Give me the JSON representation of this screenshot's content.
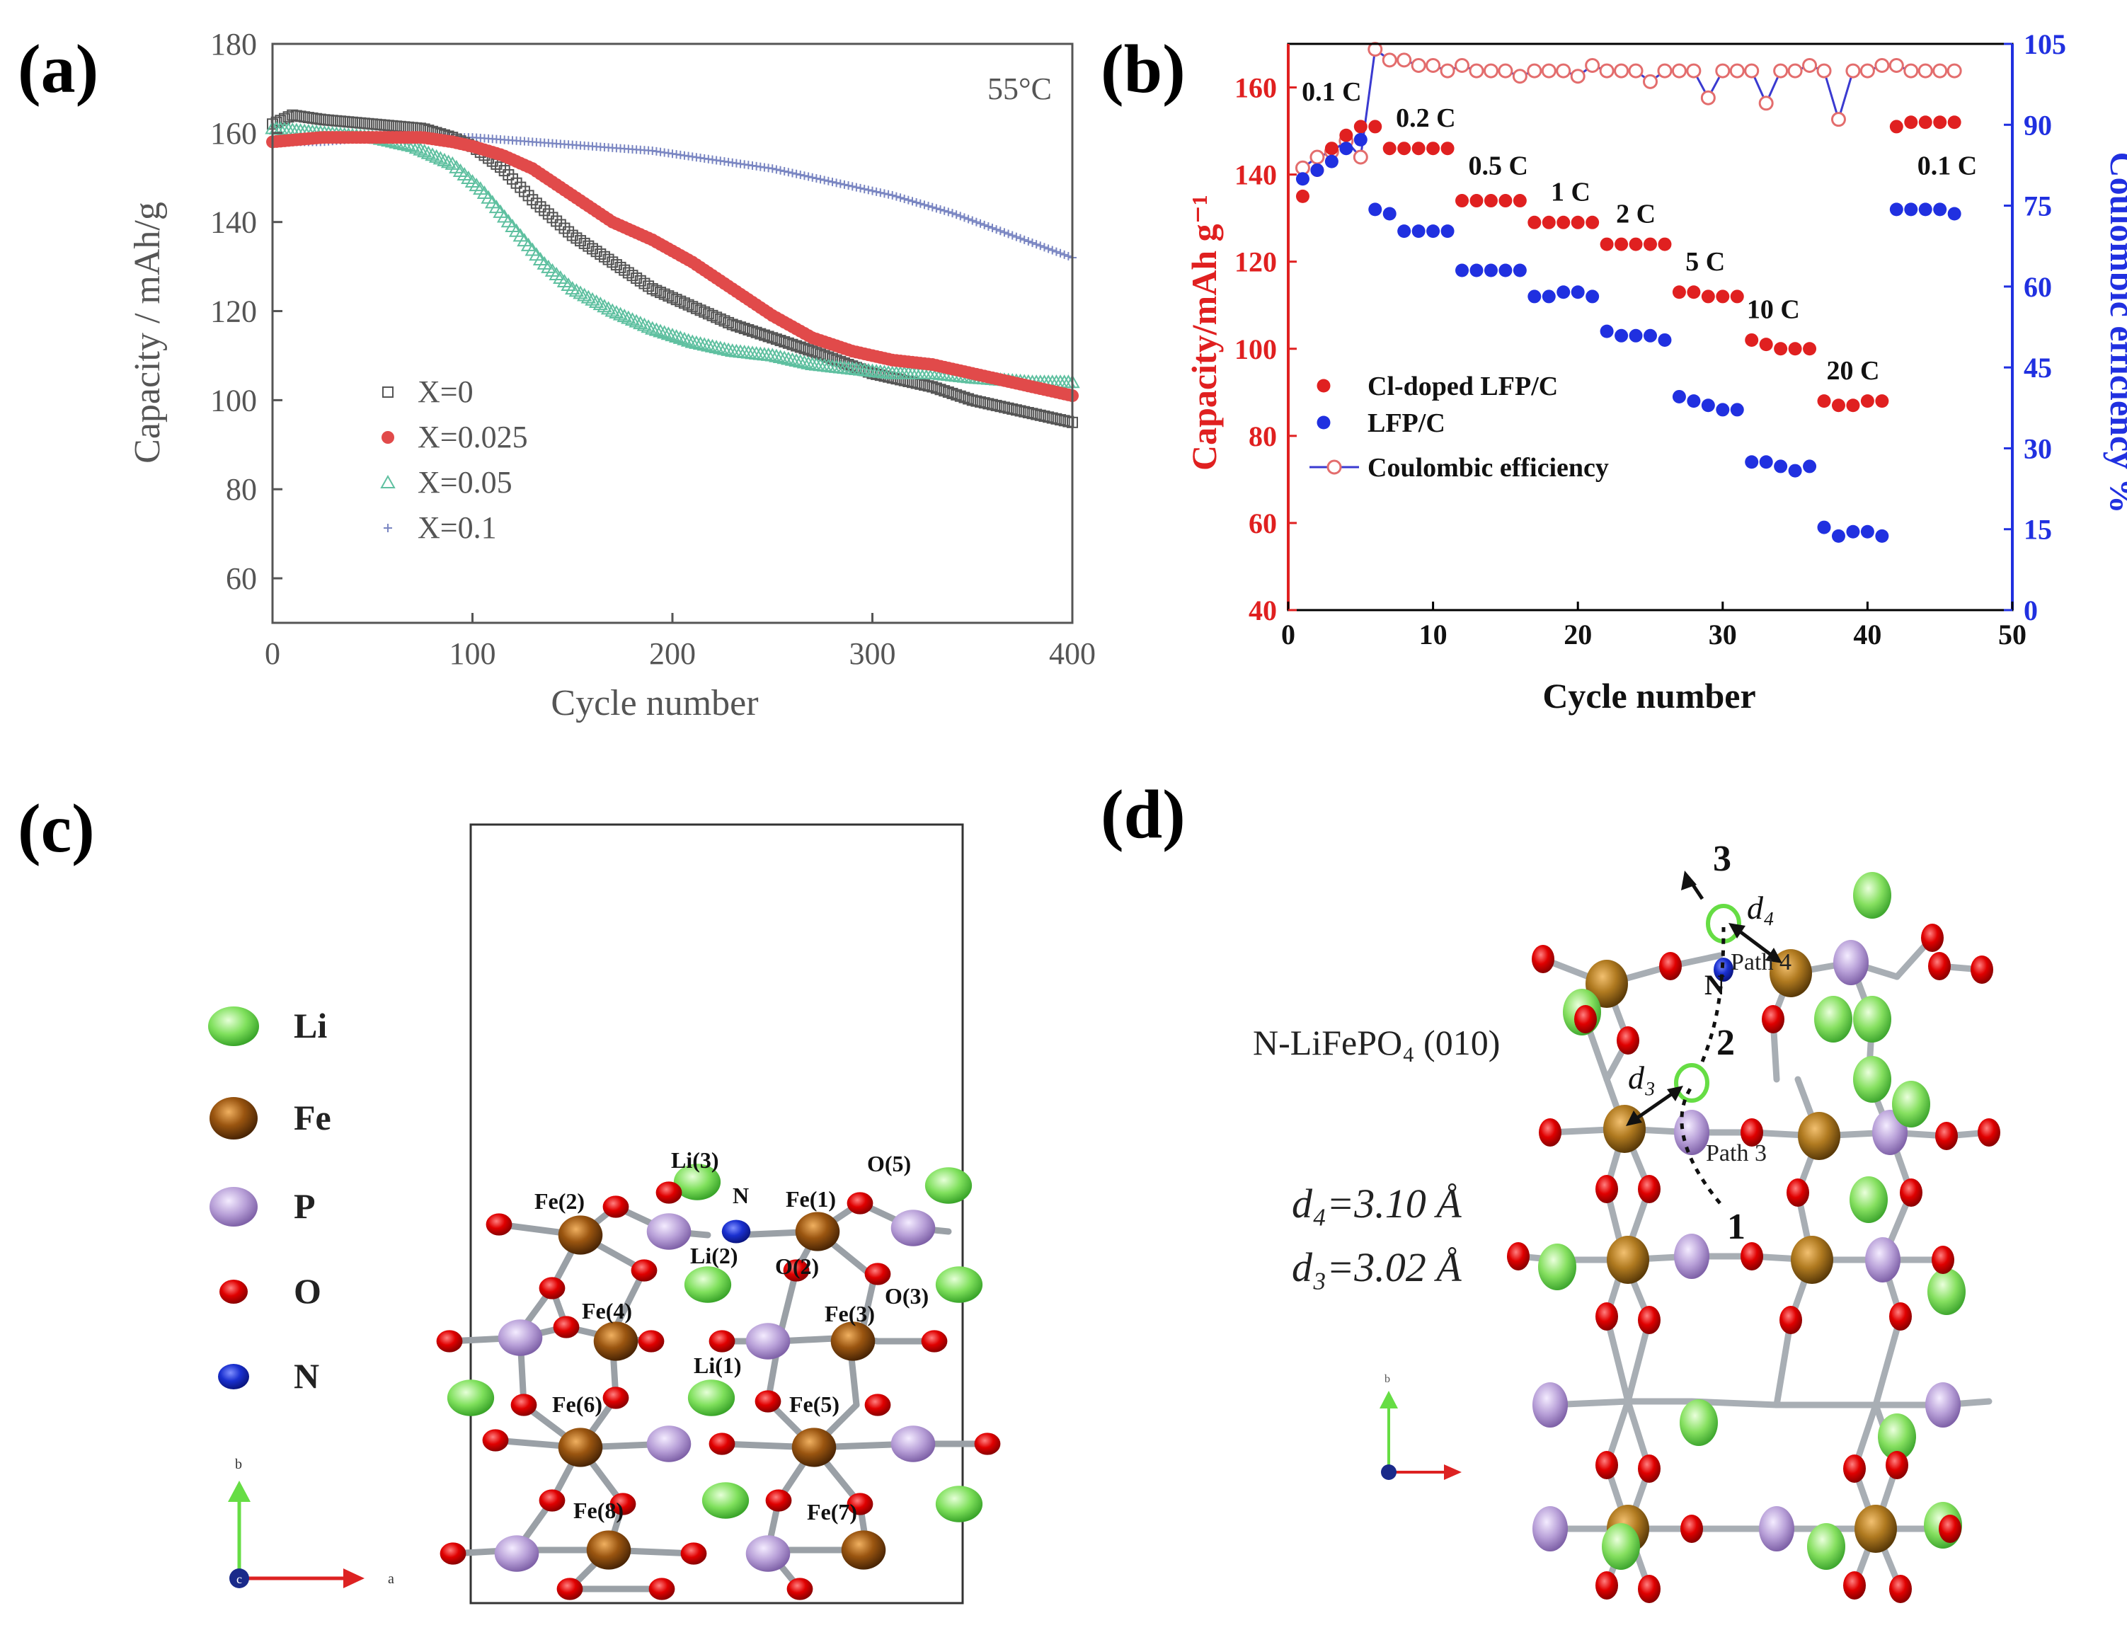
{
  "panels": {
    "a": {
      "label": "(a)"
    },
    "b": {
      "label": "(b)"
    },
    "c": {
      "label": "(c)"
    },
    "d": {
      "label": "(d)"
    }
  },
  "chart_data": [
    {
      "id": "a",
      "type": "scatter",
      "annotation": "55°C",
      "xlabel": "Cycle number",
      "ylabel": "Capacity / mAh/g",
      "xlim": [
        0,
        400
      ],
      "ylim": [
        50,
        180
      ],
      "xticks": [
        0,
        100,
        200,
        300,
        400
      ],
      "yticks": [
        60,
        80,
        100,
        120,
        140,
        160,
        180
      ],
      "legend_position": "lower-left",
      "series": [
        {
          "name": "X=0",
          "marker": "square",
          "color": "#555555",
          "points": [
            [
              0,
              162
            ],
            [
              10,
              164
            ],
            [
              25,
              163
            ],
            [
              50,
              162
            ],
            [
              75,
              161
            ],
            [
              90,
              159
            ],
            [
              100,
              157
            ],
            [
              115,
              152
            ],
            [
              130,
              145
            ],
            [
              150,
              137
            ],
            [
              170,
              131
            ],
            [
              190,
              125
            ],
            [
              210,
              121
            ],
            [
              230,
              117
            ],
            [
              250,
              114
            ],
            [
              270,
              111
            ],
            [
              300,
              106
            ],
            [
              330,
              103
            ],
            [
              350,
              100
            ],
            [
              370,
              98
            ],
            [
              400,
              95
            ]
          ]
        },
        {
          "name": "X=0.025",
          "marker": "circle",
          "color": "#e14a4a",
          "points": [
            [
              0,
              158
            ],
            [
              25,
              159
            ],
            [
              50,
              159
            ],
            [
              75,
              159
            ],
            [
              90,
              158
            ],
            [
              100,
              157
            ],
            [
              115,
              155
            ],
            [
              130,
              152
            ],
            [
              150,
              146
            ],
            [
              170,
              140
            ],
            [
              190,
              136
            ],
            [
              210,
              131
            ],
            [
              230,
              125
            ],
            [
              250,
              119
            ],
            [
              270,
              114
            ],
            [
              290,
              111
            ],
            [
              310,
              109
            ],
            [
              330,
              108
            ],
            [
              350,
              106
            ],
            [
              370,
              104
            ],
            [
              390,
              102
            ],
            [
              400,
              101
            ]
          ]
        },
        {
          "name": "X=0.05",
          "marker": "triangle",
          "color": "#5fc0a0",
          "points": [
            [
              0,
              161
            ],
            [
              25,
              160
            ],
            [
              50,
              159
            ],
            [
              70,
              157
            ],
            [
              90,
              153
            ],
            [
              105,
              147
            ],
            [
              120,
              139
            ],
            [
              135,
              131
            ],
            [
              150,
              125
            ],
            [
              170,
              120
            ],
            [
              190,
              116
            ],
            [
              210,
              113
            ],
            [
              230,
              111
            ],
            [
              250,
              110
            ],
            [
              270,
              108
            ],
            [
              290,
              107
            ],
            [
              310,
              106
            ],
            [
              330,
              106
            ],
            [
              350,
              105
            ],
            [
              380,
              104
            ],
            [
              400,
              104
            ]
          ]
        },
        {
          "name": "X=0.1",
          "marker": "plus",
          "color": "#7a86c2",
          "points": [
            [
              0,
              158
            ],
            [
              25,
              158
            ],
            [
              50,
              159
            ],
            [
              75,
              159
            ],
            [
              100,
              159
            ],
            [
              130,
              158
            ],
            [
              160,
              157
            ],
            [
              190,
              156
            ],
            [
              220,
              154
            ],
            [
              250,
              152
            ],
            [
              280,
              149
            ],
            [
              310,
              146
            ],
            [
              340,
              142
            ],
            [
              370,
              137
            ],
            [
              400,
              132
            ]
          ]
        }
      ]
    },
    {
      "id": "b",
      "type": "scatter",
      "xlabel": "Cycle number",
      "ylabel": "Capacity/mAh g⁻¹",
      "y2label": "Coulombic efficiency %",
      "xlim": [
        0,
        50
      ],
      "ylim": [
        40,
        170
      ],
      "y2lim": [
        0,
        105
      ],
      "xticks": [
        0,
        10,
        20,
        30,
        40,
        50
      ],
      "yticks": [
        40,
        60,
        80,
        100,
        120,
        140,
        160
      ],
      "y2ticks": [
        0,
        15,
        30,
        45,
        60,
        75,
        90,
        105
      ],
      "legend_position": "center-left",
      "rate_labels": [
        {
          "text": "0.1 C",
          "x": 3,
          "y": 157
        },
        {
          "text": "0.2 C",
          "x": 9.5,
          "y": 151
        },
        {
          "text": "0.5 C",
          "x": 14.5,
          "y": 140
        },
        {
          "text": "1 C",
          "x": 19.5,
          "y": 134
        },
        {
          "text": "2 C",
          "x": 24,
          "y": 129
        },
        {
          "text": "5 C",
          "x": 28.8,
          "y": 118
        },
        {
          "text": "10 C",
          "x": 33.5,
          "y": 107
        },
        {
          "text": "20 C",
          "x": 39,
          "y": 93
        },
        {
          "text": "0.1 C",
          "x": 45.5,
          "y": 140
        }
      ],
      "series": [
        {
          "name": "Cl-doped LFP/C",
          "axis": "y",
          "marker": "dot",
          "color": "#e02020",
          "x": [
            1,
            2,
            3,
            4,
            5,
            6,
            7,
            8,
            9,
            10,
            11,
            12,
            13,
            14,
            15,
            16,
            17,
            18,
            19,
            20,
            21,
            22,
            23,
            24,
            25,
            26,
            27,
            28,
            29,
            30,
            31,
            32,
            33,
            34,
            35,
            36,
            37,
            38,
            39,
            40,
            41,
            42,
            43,
            44,
            45,
            46
          ],
          "y": [
            135,
            141,
            146,
            149,
            151,
            151,
            146,
            146,
            146,
            146,
            146,
            134,
            134,
            134,
            134,
            134,
            129,
            129,
            129,
            129,
            129,
            124,
            124,
            124,
            124,
            124,
            113,
            113,
            112,
            112,
            112,
            102,
            101,
            100,
            100,
            100,
            88,
            87,
            87,
            88,
            88,
            151,
            152,
            152,
            152,
            152
          ]
        },
        {
          "name": "LFP/C",
          "axis": "y",
          "marker": "dot",
          "color": "#2030e0",
          "x": [
            1,
            2,
            3,
            4,
            5,
            6,
            7,
            8,
            9,
            10,
            11,
            12,
            13,
            14,
            15,
            16,
            17,
            18,
            19,
            20,
            21,
            22,
            23,
            24,
            25,
            26,
            27,
            28,
            29,
            30,
            31,
            32,
            33,
            34,
            35,
            36,
            37,
            38,
            39,
            40,
            41,
            42,
            43,
            44,
            45,
            46
          ],
          "y": [
            139,
            141,
            143,
            146,
            148,
            132,
            131,
            127,
            127,
            127,
            127,
            118,
            118,
            118,
            118,
            118,
            112,
            112,
            113,
            113,
            112,
            104,
            103,
            103,
            103,
            102,
            89,
            88,
            87,
            86,
            86,
            74,
            74,
            73,
            72,
            73,
            59,
            57,
            58,
            58,
            57,
            132,
            132,
            132,
            132,
            131
          ]
        },
        {
          "name": "Coulombic efficiency",
          "axis": "y2",
          "marker": "open-circle",
          "color": "#e36d6d",
          "line_color": "#3a3ad0",
          "x": [
            1,
            2,
            3,
            4,
            5,
            6,
            7,
            8,
            9,
            10,
            11,
            12,
            13,
            14,
            15,
            16,
            17,
            18,
            19,
            20,
            21,
            22,
            23,
            24,
            25,
            26,
            27,
            28,
            29,
            30,
            31,
            32,
            33,
            34,
            35,
            36,
            37,
            38,
            39,
            40,
            41,
            42,
            43,
            44,
            45,
            46
          ],
          "y": [
            82,
            84,
            85,
            87,
            84,
            104,
            102,
            102,
            101,
            101,
            100,
            101,
            100,
            100,
            100,
            99,
            100,
            100,
            100,
            99,
            101,
            100,
            100,
            100,
            98,
            100,
            100,
            100,
            95,
            100,
            100,
            100,
            94,
            100,
            100,
            101,
            100,
            91,
            100,
            100,
            101,
            101,
            100,
            100,
            100,
            100
          ]
        }
      ]
    }
  ],
  "panel_c": {
    "legend": [
      {
        "element": "Li",
        "color": "#77dd55"
      },
      {
        "element": "Fe",
        "color": "#9a5510"
      },
      {
        "element": "P",
        "color": "#b8a0d8"
      },
      {
        "element": "O",
        "color": "#e00000"
      },
      {
        "element": "N",
        "color": "#1a30d0"
      }
    ],
    "atom_labels": [
      "Li(3)",
      "N",
      "Fe(2)",
      "Fe(1)",
      "O(5)",
      "Li(2)",
      "O(2)",
      "O(3)",
      "Fe(4)",
      "Fe(3)",
      "Li(1)",
      "Fe(6)",
      "Fe(5)",
      "Fe(8)",
      "Fe(7)"
    ],
    "axes": {
      "b": "b",
      "a": "a",
      "c": "c"
    }
  },
  "panel_d": {
    "title": "N-LiFePO₄ (010)",
    "distances": [
      "d₄=3.10 Å",
      "d₃=3.02 Å"
    ],
    "site_labels": [
      "3",
      "2",
      "1",
      "N"
    ],
    "path_labels": [
      "Path 4",
      "Path 3"
    ],
    "bond_labels": [
      "d₄",
      "d₃"
    ],
    "axes": {
      "b": "b"
    }
  }
}
